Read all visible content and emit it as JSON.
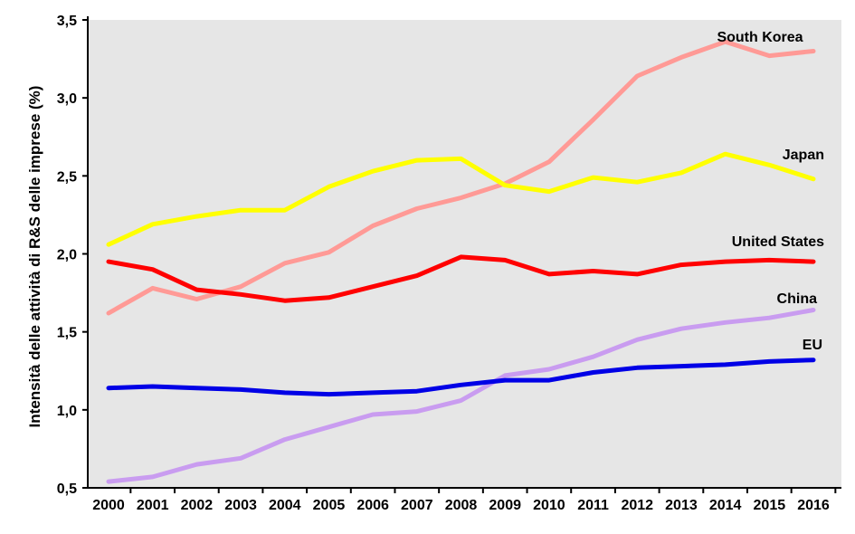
{
  "chart_data": {
    "type": "line",
    "title": "",
    "xlabel": "",
    "ylabel": "Intensità delle attività di R&S delle imprese (%)",
    "ylim": [
      0.5,
      3.5
    ],
    "y_ticks": [
      "0,5",
      "1,0",
      "1,5",
      "2,0",
      "2,5",
      "3,0",
      "3,5"
    ],
    "y_tick_values": [
      0.5,
      1.0,
      1.5,
      2.0,
      2.5,
      3.0,
      3.5
    ],
    "categories": [
      "2000",
      "2001",
      "2002",
      "2003",
      "2004",
      "2005",
      "2006",
      "2007",
      "2008",
      "2009",
      "2010",
      "2011",
      "2012",
      "2013",
      "2014",
      "2015",
      "2016"
    ],
    "grid": false,
    "plot_background": "#e6e6e6",
    "series": [
      {
        "name": "South Korea",
        "color": "#ff9a96",
        "values": [
          1.62,
          1.78,
          1.71,
          1.79,
          1.94,
          2.01,
          2.18,
          2.29,
          2.36,
          2.45,
          2.59,
          2.86,
          3.14,
          3.26,
          3.36,
          3.27,
          3.3
        ]
      },
      {
        "name": "Japan",
        "color": "#ffff00",
        "values": [
          2.06,
          2.19,
          2.24,
          2.28,
          2.28,
          2.43,
          2.53,
          2.6,
          2.61,
          2.44,
          2.4,
          2.49,
          2.46,
          2.52,
          2.64,
          2.57,
          2.48
        ]
      },
      {
        "name": "United States",
        "color": "#ff0000",
        "values": [
          1.95,
          1.9,
          1.77,
          1.74,
          1.7,
          1.72,
          1.79,
          1.86,
          1.98,
          1.96,
          1.87,
          1.89,
          1.87,
          1.93,
          1.95,
          1.96,
          1.95
        ]
      },
      {
        "name": "China",
        "color": "#c99cf0",
        "values": [
          0.54,
          0.57,
          0.65,
          0.69,
          0.81,
          0.89,
          0.97,
          0.99,
          1.06,
          1.22,
          1.26,
          1.34,
          1.45,
          1.52,
          1.56,
          1.59,
          1.64
        ]
      },
      {
        "name": "EU",
        "color": "#0000e6",
        "values": [
          1.14,
          1.15,
          1.14,
          1.13,
          1.11,
          1.1,
          1.11,
          1.12,
          1.16,
          1.19,
          1.19,
          1.24,
          1.27,
          1.28,
          1.29,
          1.31,
          1.32
        ]
      }
    ]
  }
}
